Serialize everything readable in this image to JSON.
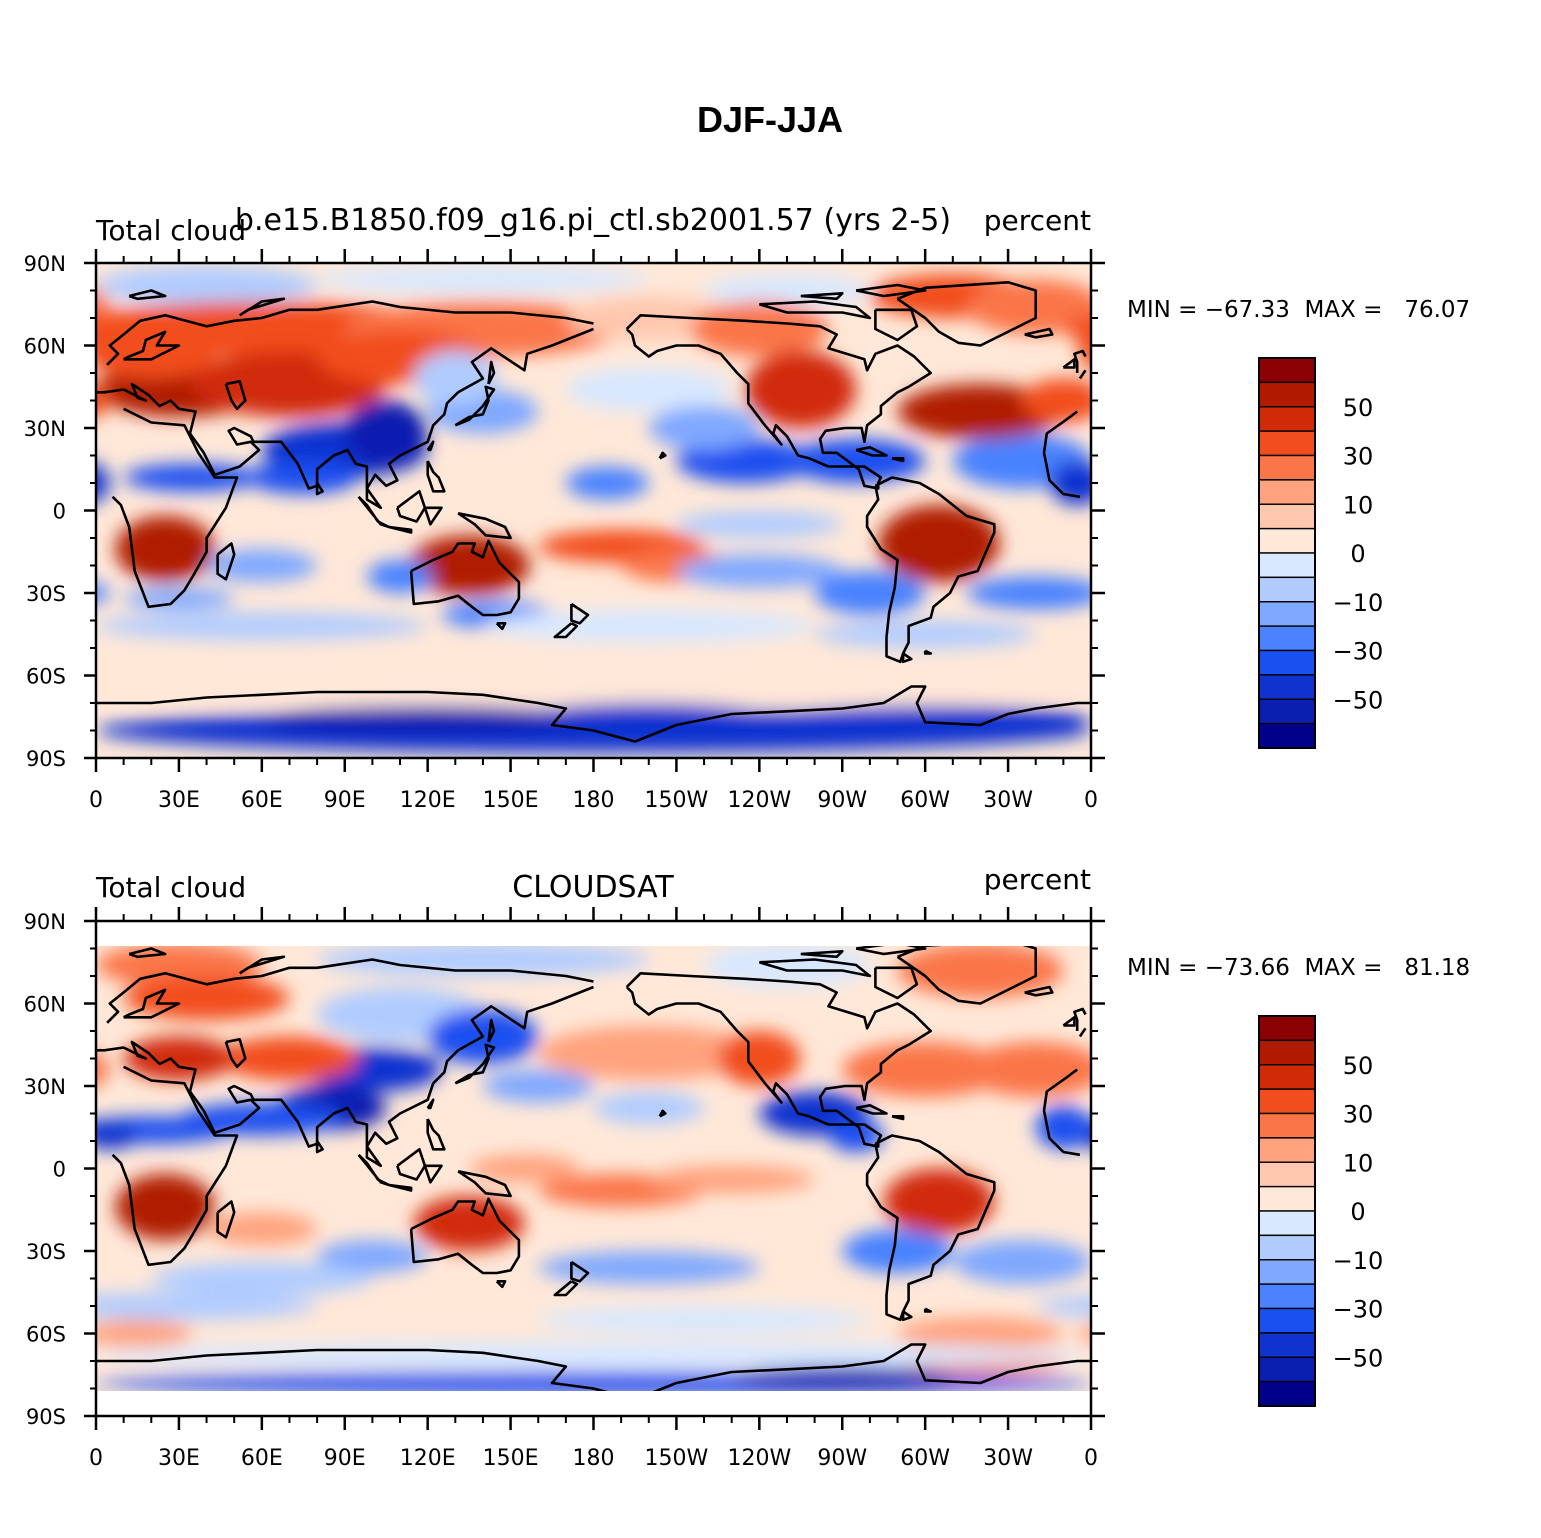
{
  "figure": {
    "title": "DJF-JJA"
  },
  "colors": {
    "palette": [
      "#00008b",
      "#0a1fb0",
      "#1033d0",
      "#1a4ff0",
      "#4a82ff",
      "#7fa8ff",
      "#b0ccff",
      "#d8e8ff",
      "#ffe8d8",
      "#ffc8ae",
      "#ffa27d",
      "#fa7648",
      "#f24d1e",
      "#d12a08",
      "#b01b00",
      "#8b0000"
    ],
    "coast": "#000000"
  },
  "axes": {
    "lat_ticks": [
      "90N",
      "60N",
      "30N",
      "0",
      "30S",
      "60S",
      "90S"
    ],
    "lon_ticks": [
      "0",
      "30E",
      "60E",
      "90E",
      "120E",
      "150E",
      "180",
      "150W",
      "120W",
      "90W",
      "60W",
      "30W",
      "0"
    ]
  },
  "colorbar": {
    "labels": [
      "50",
      "30",
      "10",
      "0",
      "−10",
      "−30",
      "−50"
    ]
  },
  "panels": [
    {
      "left_title": "Total cloud",
      "center_title": "b.e15.B1850.f09_g16.pi_ctl.sb2001.57 (yrs 2-5)",
      "right_title": "percent",
      "stats": "MIN = −67.33  MAX =   76.07"
    },
    {
      "left_title": "Total cloud",
      "center_title": "CLOUDSAT",
      "right_title": "percent",
      "stats": "MIN = −73.66  MAX =   81.18"
    }
  ]
}
